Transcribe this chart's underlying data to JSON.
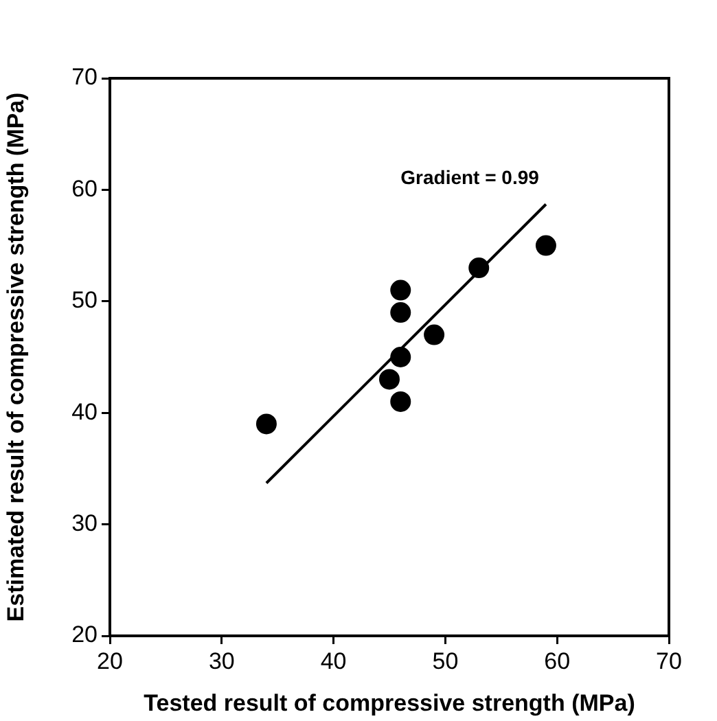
{
  "chart_data": {
    "type": "scatter",
    "xlabel": "Tested result of compressive strength (MPa)",
    "ylabel": "Estimated result of compressive strength (MPa)",
    "annotations": [
      "Gradient = 0.99"
    ],
    "xlim": [
      20,
      70
    ],
    "ylim": [
      20,
      70
    ],
    "xticks": [
      20,
      30,
      40,
      50,
      60,
      70
    ],
    "yticks": [
      20,
      30,
      40,
      50,
      60,
      70
    ],
    "grid": false,
    "legend": false,
    "series": [
      {
        "color": "#000000",
        "marker": "circle",
        "x": [
          34,
          45,
          46,
          46,
          46,
          46,
          49,
          53,
          59
        ],
        "values": [
          39,
          43,
          41,
          45,
          49,
          51,
          47,
          53,
          55
        ]
      },
      {
        "type": "line",
        "color": "#000000",
        "marker": "none",
        "x": [
          34,
          59
        ],
        "values": [
          33.7,
          58.7
        ]
      }
    ]
  }
}
